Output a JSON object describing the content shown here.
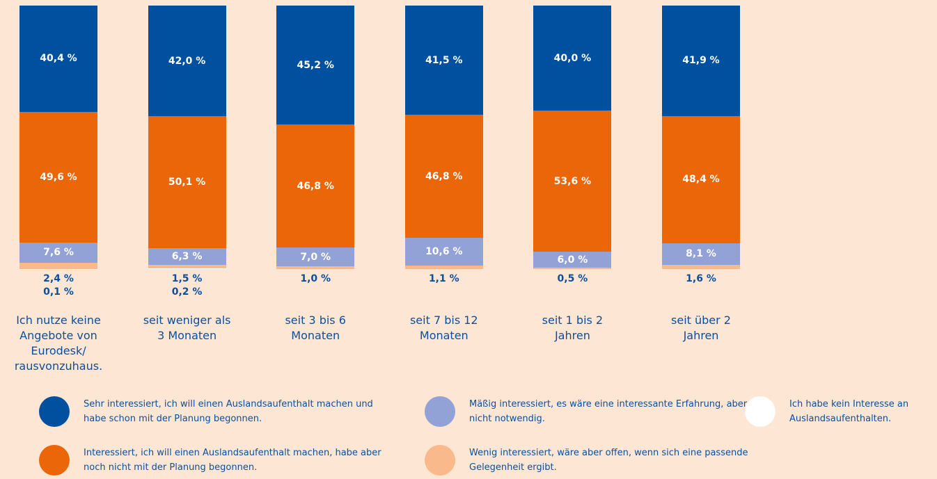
{
  "chart_data": {
    "type": "stacked_bar",
    "categories": [
      "Ich nutze keine Angebote von Eurodesk/ rausvonzuhaus.",
      "seit weniger als 3 Monaten",
      "seit 3 bis 6 Monaten",
      "seit 7 bis 12 Monaten",
      "seit 1 bis 2 Jahren",
      "seit über 2 Jahren"
    ],
    "series": [
      {
        "name": "Sehr interessiert, ich will einen Auslandsaufenthalt machen und habe schon mit der Planung begonnen.",
        "color": "#0050a0",
        "values": [
          40.4,
          42.0,
          45.2,
          41.5,
          40.0,
          41.9
        ],
        "value_labels": [
          "40,4 %",
          "42,0 %",
          "45,2 %",
          "41,5 %",
          "40,0 %",
          "41,9 %"
        ]
      },
      {
        "name": "Interessiert, ich will einen Auslandsaufenthalt machen, habe aber noch nicht mit der Planung begonnen.",
        "color": "#eb6608",
        "values": [
          49.6,
          50.1,
          46.8,
          46.8,
          53.6,
          48.4
        ],
        "value_labels": [
          "49,6 %",
          "50,1 %",
          "46,8 %",
          "46,8 %",
          "53,6 %",
          "48,4 %"
        ]
      },
      {
        "name": "Mäßig interessiert, es wäre eine interessante Erfahrung, aber nicht notwendig.",
        "color": "#93a2d6",
        "values": [
          7.6,
          6.3,
          7.0,
          10.6,
          6.0,
          8.1
        ],
        "value_labels": [
          "7,6 %",
          "6,3 %",
          "7,0 %",
          "10,6 %",
          "6,0 %",
          "8,1 %"
        ]
      },
      {
        "name": "Wenig interessiert, wäre aber offen, wenn sich eine passende Gelegenheit ergibt.",
        "color": "#f9b98a",
        "values": [
          2.4,
          1.5,
          1.0,
          1.1,
          0.5,
          1.6
        ],
        "value_labels": [
          "2,4 %",
          "1,5 %",
          "1,0 %",
          "1,1 %",
          "0,5 %",
          "1,6 %"
        ]
      },
      {
        "name": "Ich habe kein Interesse an Auslandsaufenthalten.",
        "color": "#ffffff",
        "values": [
          0.1,
          0.2,
          null,
          null,
          null,
          null
        ],
        "value_labels": [
          "0,1 %",
          "0,2 %",
          null,
          null,
          null,
          null
        ]
      }
    ]
  }
}
